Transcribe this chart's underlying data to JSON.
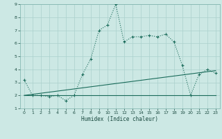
{
  "title": "",
  "xlabel": "Humidex (Indice chaleur)",
  "xlim": [
    -0.5,
    23.5
  ],
  "ylim": [
    1,
    9
  ],
  "yticks": [
    1,
    2,
    3,
    4,
    5,
    6,
    7,
    8,
    9
  ],
  "xticks": [
    0,
    1,
    2,
    3,
    4,
    5,
    6,
    7,
    8,
    9,
    10,
    11,
    12,
    13,
    14,
    15,
    16,
    17,
    18,
    19,
    20,
    21,
    22,
    23
  ],
  "bg_color": "#cce8e4",
  "grid_color": "#aad0cc",
  "line_color": "#1a6b5a",
  "series1_x": [
    0,
    1,
    2,
    3,
    4,
    5,
    6,
    7,
    8,
    9,
    10,
    11,
    12,
    13,
    14,
    15,
    16,
    17,
    18,
    19,
    20,
    21,
    22,
    23
  ],
  "series1_y": [
    3.2,
    2.0,
    2.0,
    1.9,
    2.0,
    1.6,
    2.0,
    3.6,
    4.8,
    7.0,
    7.4,
    9.0,
    6.1,
    6.5,
    6.5,
    6.6,
    6.5,
    6.7,
    6.1,
    4.3,
    2.0,
    3.6,
    4.0,
    3.7
  ],
  "series2_x": [
    0,
    23
  ],
  "series2_y": [
    2.0,
    2.0
  ],
  "series3_x": [
    0,
    23
  ],
  "series3_y": [
    2.0,
    3.9
  ]
}
